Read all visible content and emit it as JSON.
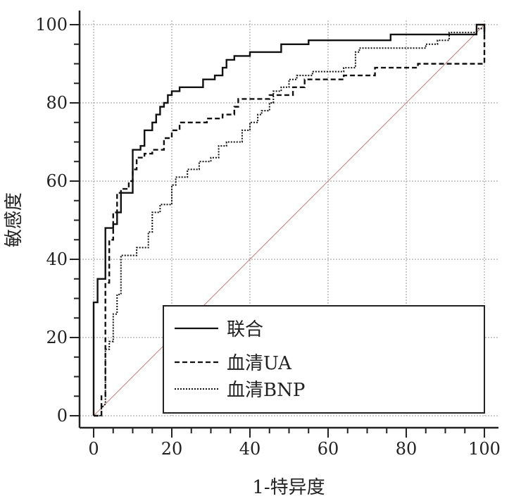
{
  "chart_data": {
    "type": "line",
    "title": "",
    "xlabel": "1-特异度",
    "ylabel": "敏感度",
    "xlim": [
      0,
      100
    ],
    "ylim": [
      0,
      100
    ],
    "xticks": [
      "0",
      "20",
      "40",
      "60",
      "80",
      "100"
    ],
    "yticks": [
      "0",
      "20",
      "40",
      "60",
      "80",
      "100"
    ],
    "grid": true,
    "legend_position": "bottom-right",
    "reference_line": {
      "x": [
        0,
        100
      ],
      "y": [
        0,
        100
      ],
      "color": "#c08080"
    },
    "series": [
      {
        "name": "联合",
        "style": "solid",
        "points": [
          [
            0,
            0
          ],
          [
            0,
            29
          ],
          [
            1,
            29
          ],
          [
            1,
            35
          ],
          [
            3,
            35
          ],
          [
            3,
            48
          ],
          [
            5,
            48
          ],
          [
            5,
            49
          ],
          [
            6,
            49
          ],
          [
            6,
            52
          ],
          [
            7,
            52
          ],
          [
            7,
            57
          ],
          [
            10,
            57
          ],
          [
            10,
            68
          ],
          [
            12,
            68
          ],
          [
            12,
            69
          ],
          [
            13,
            69
          ],
          [
            13,
            73
          ],
          [
            15,
            73
          ],
          [
            15,
            75
          ],
          [
            16,
            75
          ],
          [
            16,
            77
          ],
          [
            17,
            77
          ],
          [
            17,
            79
          ],
          [
            18,
            79
          ],
          [
            18,
            80
          ],
          [
            19,
            80
          ],
          [
            19,
            82
          ],
          [
            20,
            82
          ],
          [
            20,
            83
          ],
          [
            22,
            83
          ],
          [
            22,
            84
          ],
          [
            28,
            84
          ],
          [
            28,
            86
          ],
          [
            31,
            86
          ],
          [
            31,
            87
          ],
          [
            33,
            87
          ],
          [
            33,
            89
          ],
          [
            34,
            89
          ],
          [
            34,
            91
          ],
          [
            36,
            91
          ],
          [
            36,
            92
          ],
          [
            40,
            92
          ],
          [
            40,
            93
          ],
          [
            48,
            93
          ],
          [
            48,
            95
          ],
          [
            55,
            95
          ],
          [
            55,
            96
          ],
          [
            76,
            96
          ],
          [
            76,
            97.5
          ],
          [
            98,
            97.5
          ],
          [
            98,
            100
          ],
          [
            100,
            100
          ],
          [
            100,
            97.5
          ]
        ]
      },
      {
        "name": "血清UA",
        "style": "dashed",
        "points": [
          [
            0,
            0
          ],
          [
            2,
            0
          ],
          [
            2,
            5
          ],
          [
            3,
            5
          ],
          [
            3,
            34
          ],
          [
            4,
            34
          ],
          [
            4,
            45
          ],
          [
            5,
            45
          ],
          [
            5,
            52
          ],
          [
            6,
            52
          ],
          [
            6,
            57
          ],
          [
            7,
            57
          ],
          [
            7,
            58
          ],
          [
            9,
            58
          ],
          [
            9,
            60
          ],
          [
            10,
            60
          ],
          [
            10,
            63
          ],
          [
            11,
            63
          ],
          [
            11,
            66
          ],
          [
            13,
            66
          ],
          [
            13,
            67
          ],
          [
            15,
            67
          ],
          [
            15,
            68
          ],
          [
            18,
            68
          ],
          [
            18,
            71
          ],
          [
            20,
            71
          ],
          [
            20,
            73
          ],
          [
            22,
            73
          ],
          [
            22,
            75
          ],
          [
            29,
            75
          ],
          [
            29,
            76
          ],
          [
            33,
            76
          ],
          [
            33,
            77
          ],
          [
            36,
            77
          ],
          [
            36,
            79
          ],
          [
            37,
            79
          ],
          [
            37,
            81
          ],
          [
            45,
            81
          ],
          [
            45,
            82
          ],
          [
            51,
            82
          ],
          [
            51,
            84
          ],
          [
            54,
            84
          ],
          [
            54,
            86
          ],
          [
            64,
            86
          ],
          [
            64,
            87
          ],
          [
            72,
            87
          ],
          [
            72,
            89
          ],
          [
            83,
            89
          ],
          [
            83,
            90
          ],
          [
            100,
            90
          ],
          [
            100,
            100
          ]
        ]
      },
      {
        "name": "血清BNP",
        "style": "dotted",
        "points": [
          [
            0,
            0
          ],
          [
            2,
            0
          ],
          [
            2,
            2
          ],
          [
            3,
            3
          ],
          [
            3,
            17
          ],
          [
            4,
            17
          ],
          [
            4,
            19
          ],
          [
            5,
            19
          ],
          [
            5,
            26
          ],
          [
            6,
            26
          ],
          [
            6,
            31
          ],
          [
            7,
            31
          ],
          [
            7,
            41
          ],
          [
            11,
            41
          ],
          [
            11,
            43
          ],
          [
            14,
            43
          ],
          [
            14,
            47
          ],
          [
            15,
            47
          ],
          [
            15,
            52
          ],
          [
            17,
            52
          ],
          [
            17,
            54
          ],
          [
            20,
            54
          ],
          [
            20,
            59
          ],
          [
            21,
            59
          ],
          [
            21,
            61
          ],
          [
            24,
            61
          ],
          [
            24,
            63
          ],
          [
            27,
            63
          ],
          [
            27,
            65
          ],
          [
            30,
            65
          ],
          [
            30,
            66
          ],
          [
            32,
            66
          ],
          [
            32,
            69
          ],
          [
            34,
            69
          ],
          [
            34,
            70
          ],
          [
            38,
            70
          ],
          [
            38,
            73
          ],
          [
            40,
            73
          ],
          [
            40,
            75
          ],
          [
            42,
            75
          ],
          [
            42,
            77
          ],
          [
            43,
            77
          ],
          [
            43,
            78
          ],
          [
            45,
            78
          ],
          [
            45,
            80
          ],
          [
            46,
            80
          ],
          [
            46,
            83
          ],
          [
            48,
            83
          ],
          [
            48,
            84
          ],
          [
            50,
            84
          ],
          [
            50,
            86
          ],
          [
            52,
            86
          ],
          [
            52,
            87
          ],
          [
            56,
            87
          ],
          [
            56,
            88
          ],
          [
            64,
            88
          ],
          [
            64,
            89
          ],
          [
            67,
            89
          ],
          [
            67,
            93
          ],
          [
            68,
            93
          ],
          [
            68,
            94
          ],
          [
            85,
            94
          ],
          [
            85,
            95
          ],
          [
            88,
            95
          ],
          [
            88,
            96
          ],
          [
            91,
            96
          ],
          [
            91,
            98
          ],
          [
            98,
            98
          ],
          [
            98,
            99
          ],
          [
            100,
            99
          ]
        ]
      }
    ]
  }
}
